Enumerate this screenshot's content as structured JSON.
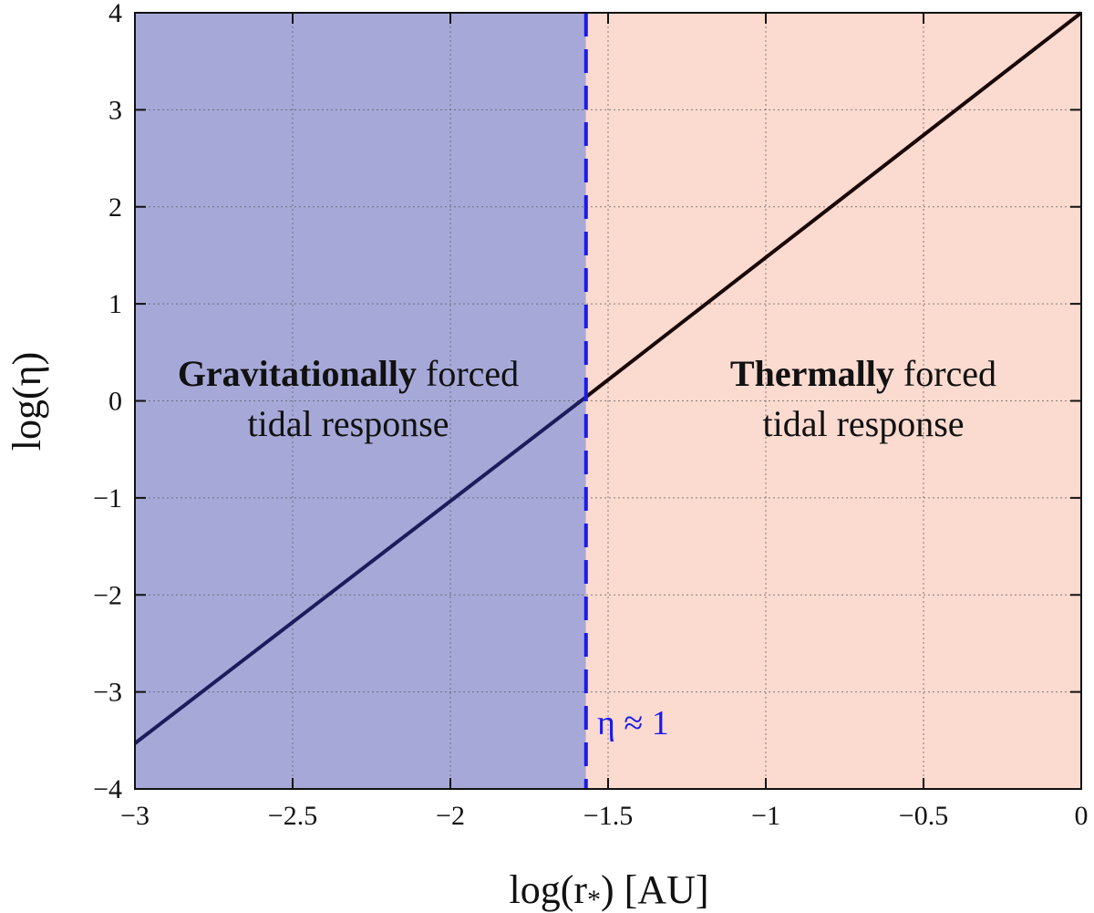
{
  "chart_data": {
    "type": "line",
    "xlabel_main": "log(r",
    "xlabel_sub": "*",
    "xlabel_tail": ") [AU]",
    "ylabel": "log(η)",
    "xlim": [
      -3,
      0
    ],
    "ylim": [
      -4,
      4
    ],
    "x_ticks": [
      -3,
      -2.5,
      -2,
      -1.5,
      -1,
      -0.5,
      0
    ],
    "x_tick_labels": [
      "−3",
      "−2.5",
      "−2",
      "−1.5",
      "−1",
      "−0.5",
      "0"
    ],
    "y_ticks": [
      -4,
      -3,
      -2,
      -1,
      0,
      1,
      2,
      3,
      4
    ],
    "y_tick_labels": [
      "−4",
      "−3",
      "−2",
      "−1",
      "0",
      "1",
      "2",
      "3",
      "4"
    ],
    "grid": true,
    "boundary_x": -1.57,
    "series": [
      {
        "x": [
          -3,
          -1.57
        ],
        "y": [
          -3.53,
          0.04
        ],
        "color": "#1c1c5c"
      },
      {
        "x": [
          -1.57,
          0
        ],
        "y": [
          0.04,
          4.0
        ],
        "color": "#1a0808"
      }
    ],
    "regions": [
      {
        "x_from": -3,
        "x_to": -1.57,
        "color": "#a6a9d8",
        "label_bold": "Gravitationally",
        "label_rest": " forced",
        "label_line2": "tidal response"
      },
      {
        "x_from": -1.57,
        "x_to": 0,
        "color": "#fbdad0",
        "label_bold": "Thermally",
        "label_rest": " forced",
        "label_line2": "tidal response"
      }
    ],
    "annotation": {
      "text": "η  ≈ 1",
      "color": "#1a1aee"
    }
  }
}
